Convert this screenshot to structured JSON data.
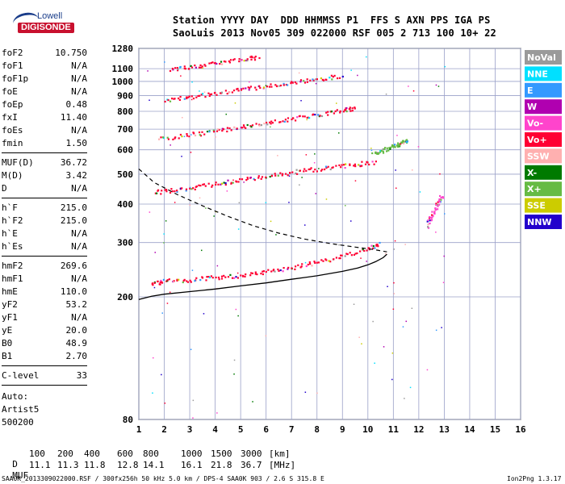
{
  "logo": {
    "brand": "Lowell",
    "product": "DIGISONDE"
  },
  "header": {
    "line1": "Station YYYY DAY  DDD HHMMSS P1  FFS S AXN PPS IGA PS",
    "line2": "SaoLuis 2013 Nov05 309 022000 RSF 005 2 713 100 10+ 22"
  },
  "params": [
    {
      "name": "foF2",
      "value": "10.750"
    },
    {
      "name": "foF1",
      "value": "N/A"
    },
    {
      "name": "foF1p",
      "value": "N/A"
    },
    {
      "name": "foE",
      "value": "N/A"
    },
    {
      "name": "foEp",
      "value": "0.48"
    },
    {
      "name": "fxI",
      "value": "11.40"
    },
    {
      "name": "foEs",
      "value": "N/A"
    },
    {
      "name": "fmin",
      "value": "1.50"
    },
    {
      "sep": true
    },
    {
      "name": "MUF(D)",
      "value": "36.72"
    },
    {
      "name": "M(D)",
      "value": "3.42"
    },
    {
      "name": "D",
      "value": "N/A"
    },
    {
      "sep": true
    },
    {
      "name": "h`F",
      "value": "215.0"
    },
    {
      "name": "h`F2",
      "value": "215.0"
    },
    {
      "name": "h`E",
      "value": "N/A"
    },
    {
      "name": "h`Es",
      "value": "N/A"
    },
    {
      "sep": true
    },
    {
      "name": "hmF2",
      "value": "269.6"
    },
    {
      "name": "hmF1",
      "value": "N/A"
    },
    {
      "name": "hmE",
      "value": "110.0"
    },
    {
      "name": "yF2",
      "value": "53.2"
    },
    {
      "name": "yF1",
      "value": "N/A"
    },
    {
      "name": "yE",
      "value": "20.0"
    },
    {
      "name": "B0",
      "value": "48.9"
    },
    {
      "name": "B1",
      "value": "2.70"
    },
    {
      "sep": true
    },
    {
      "name": "C-level",
      "value": "33"
    },
    {
      "sep": true
    }
  ],
  "autoscaling": [
    "Auto:",
    "Artist5",
    "500200"
  ],
  "legend": [
    {
      "label": "NoVal",
      "color": "#9a9a9a"
    },
    {
      "label": "NNE",
      "color": "#00e0ff"
    },
    {
      "label": "E",
      "color": "#3399ff"
    },
    {
      "label": "W",
      "color": "#b000b0"
    },
    {
      "label": "Vo-",
      "color": "#ff44cc"
    },
    {
      "label": "Vo+",
      "color": "#ff0033"
    },
    {
      "label": "SSW",
      "color": "#ffb0b0"
    },
    {
      "label": "X-",
      "color": "#007a00"
    },
    {
      "label": "X+",
      "color": "#66bb44"
    },
    {
      "label": "SSE",
      "color": "#cccc00"
    },
    {
      "label": "NNW",
      "color": "#2200cc"
    }
  ],
  "chart_data": {
    "type": "scatter",
    "xlabel": "",
    "ylabel": "",
    "xlim": [
      1,
      16
    ],
    "ylim": [
      80,
      1280
    ],
    "y_scale": "log",
    "x_ticks": [
      1,
      2,
      3,
      4,
      5,
      6,
      7,
      8,
      9,
      10,
      11,
      12,
      13,
      14,
      15,
      16
    ],
    "y_ticks": [
      80,
      200,
      300,
      400,
      500,
      600,
      700,
      800,
      900,
      1000,
      1100,
      1280
    ],
    "grid": true,
    "traces": [
      {
        "color": "#ff0033",
        "x": [
          1.5,
          2,
          3,
          4,
          5,
          6,
          7,
          8,
          9,
          10,
          10.5
        ],
        "y": [
          222,
          226,
          228,
          232,
          236,
          242,
          250,
          260,
          272,
          288,
          300
        ]
      },
      {
        "color": "#ff0033",
        "x": [
          1.6,
          2.5,
          3.5,
          4.5,
          5.5,
          6.5,
          7.5,
          8.5,
          9.5,
          10.3
        ],
        "y": [
          438,
          448,
          460,
          474,
          488,
          502,
          516,
          528,
          540,
          550
        ]
      },
      {
        "color": "#ff0033",
        "x": [
          1.7,
          3,
          4,
          5,
          6,
          7,
          8,
          9,
          9.5
        ],
        "y": [
          652,
          674,
          694,
          714,
          736,
          758,
          782,
          808,
          822
        ]
      },
      {
        "color": "#ff0033",
        "x": [
          2,
          3,
          4,
          5,
          6,
          7,
          8,
          9
        ],
        "y": [
          870,
          896,
          920,
          945,
          970,
          995,
          1022,
          1050
        ]
      },
      {
        "color": "#ff0033",
        "x": [
          2.2,
          3,
          4,
          5,
          5.7
        ],
        "y": [
          1098,
          1122,
          1152,
          1182,
          1205
        ]
      },
      {
        "color": "#66bb44",
        "x": [
          10.2,
          10.6,
          11,
          11.3,
          11.6
        ],
        "y": [
          582,
          600,
          620,
          636,
          650
        ]
      },
      {
        "color": "#ff44cc",
        "x": [
          12.3,
          12.5,
          12.7,
          12.9
        ],
        "y": [
          340,
          370,
          400,
          430
        ]
      }
    ],
    "profile_solid_x": [
      1,
      1.5,
      2,
      3,
      4,
      5,
      6,
      7,
      8,
      9,
      9.6,
      10,
      10.3,
      10.6,
      10.75
    ],
    "profile_solid_y": [
      196,
      201,
      204,
      208,
      212,
      217,
      222,
      228,
      234,
      242,
      248,
      254,
      260,
      268,
      275
    ],
    "profile_dashed_x": [
      1,
      1.6,
      2.5,
      3.5,
      4.5,
      5.5,
      6.5,
      7.5,
      8.5,
      9.5,
      10.2,
      10.75
    ],
    "profile_dashed_y": [
      520,
      470,
      430,
      395,
      365,
      340,
      322,
      308,
      298,
      290,
      285,
      280
    ],
    "maximum_usable_frequency_table": {
      "distance_label": "D",
      "distance_unit": "[km]",
      "distances": [
        "100",
        "200",
        "400",
        "600",
        "800",
        "1000",
        "1500",
        "3000"
      ],
      "muf_label": "MUF",
      "muf_unit": "[MHz]",
      "muf": [
        "11.1",
        "11.3",
        "11.8",
        "12.8",
        "14.1",
        "16.1",
        "21.8",
        "36.7"
      ]
    }
  },
  "bottom": {
    "left": "SAA0K_2013309022000.RSF / 300fx256h 50 kHz 5.0 km / DPS-4 SAA0K 903 / 2.6 S 315.8 E",
    "right": "Ion2Png 1.3.17"
  }
}
